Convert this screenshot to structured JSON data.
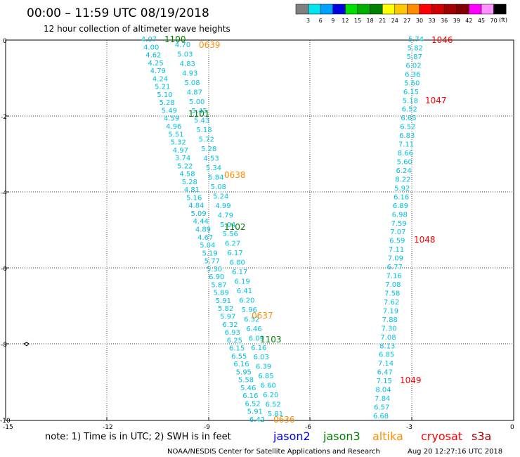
{
  "title": "00:00 – 11:59 UTC 08/19/2018",
  "subtitle": "12 hour collection of altimeter wave heights",
  "legend": {
    "unit": "(ft)",
    "colors": [
      "#808080",
      "#00e5ee",
      "#00a0ff",
      "#0000e0",
      "#00e000",
      "#00b000",
      "#008000",
      "#ffff00",
      "#ffc800",
      "#ff8c00",
      "#ff0000",
      "#d00000",
      "#a00000",
      "#800000",
      "#ff00ff",
      "#ff90ff",
      "#000000"
    ],
    "labels": [
      "3",
      "6",
      "9",
      "12",
      "15",
      "18",
      "21",
      "24",
      "27",
      "30",
      "33",
      "36",
      "39",
      "42",
      "45",
      "70"
    ]
  },
  "axes": {
    "x_ticks": [
      "-15",
      "-12",
      "-9",
      "-6",
      "-3",
      "0"
    ],
    "y_ticks": [
      "0",
      "-2",
      "-4",
      "-6",
      "-8",
      "-10"
    ]
  },
  "pass_labels": [
    {
      "text": "1100",
      "color": "#008000"
    },
    {
      "text": "0639",
      "color": "#ff8c00"
    },
    {
      "text": "1101",
      "color": "#008000"
    },
    {
      "text": "0638",
      "color": "#ff8c00"
    },
    {
      "text": "1102",
      "color": "#008000"
    },
    {
      "text": "0637",
      "color": "#ff8c00"
    },
    {
      "text": "1103",
      "color": "#008000"
    },
    {
      "text": "0636",
      "color": "#ff8c00"
    },
    {
      "text": "1046",
      "color": "#ff0000"
    },
    {
      "text": "1047",
      "color": "#ff0000"
    },
    {
      "text": "1048",
      "color": "#ff0000"
    },
    {
      "text": "1049",
      "color": "#ff0000"
    }
  ],
  "swh_color": "#00c0e0",
  "tracks": {
    "track_a": [
      "4.07",
      "4.00",
      "4.62",
      "4.25",
      "4.79",
      "4.24",
      "5.21",
      "5.10",
      "5.28",
      "5.49",
      "4.59",
      "4.96",
      "5.51",
      "5.32",
      "4.97",
      "3.74",
      "5.22",
      "4.58",
      "5.28",
      "4.81",
      "5.16",
      "4.84",
      "5.09",
      "4.44",
      "4.89",
      "4.67",
      "5.04",
      "5.19",
      "5.77",
      "5.30",
      "6.90",
      "5.87",
      "5.89",
      "5.91",
      "5.82",
      "5.97",
      "6.32",
      "6.93",
      "6.25",
      "6.15",
      "6.55",
      "6.16",
      "5.95",
      "5.58",
      "5.46",
      "6.16",
      "6.52",
      "5.91",
      "6.42"
    ],
    "track_b": [
      "4.70",
      "5.03",
      "4.83",
      "4.93",
      "5.08",
      "4.87",
      "5.00",
      "5.45",
      "5.43",
      "5.18",
      "5.72",
      "5.28",
      "4.53",
      "5.34",
      "5.84",
      "5.08",
      "5.24",
      "4.99",
      "4.79",
      "5.04",
      "5.56",
      "6.27",
      "6.17",
      "6.80",
      "6.17",
      "6.19",
      "6.41",
      "6.20",
      "5.96",
      "6.32",
      "6.46",
      "6.09",
      "6.16",
      "6.03",
      "6.39",
      "6.85",
      "6.60",
      "6.20",
      "6.52",
      "5.81"
    ],
    "track_c": [
      "5.74",
      "5.82",
      "5.87",
      "6.02",
      "6.36",
      "5.60",
      "6.15",
      "5.18",
      "6.52",
      "6.65",
      "6.52",
      "6.83",
      "7.11",
      "8.66",
      "5.60",
      "6.24",
      "8.22",
      "5.92",
      "6.16",
      "6.89",
      "6.98",
      "7.59",
      "7.07",
      "6.59",
      "7.11",
      "7.09",
      "6.77",
      "7.16",
      "7.08",
      "7.58",
      "7.62",
      "7.19",
      "7.88",
      "7.30",
      "7.08",
      "8.13",
      "6.85",
      "7.14",
      "6.47",
      "7.15",
      "8.04",
      "7.84",
      "6.57",
      "6.68"
    ]
  },
  "footer": {
    "note": "note: 1) Time is in UTC; 2) SWH is in feet",
    "satellites": [
      {
        "name": "jason2",
        "color": "#0000e0"
      },
      {
        "name": "jason3",
        "color": "#008000"
      },
      {
        "name": "altika",
        "color": "#ff8c00"
      },
      {
        "name": "cryosat",
        "color": "#ff0000"
      },
      {
        "name": "s3a",
        "color": "#a00000"
      }
    ],
    "credit": "NOAA/NESDIS Center for Satellite Applications and Research",
    "timestamp": "Aug 20 12:27:16 UTC 2018"
  }
}
